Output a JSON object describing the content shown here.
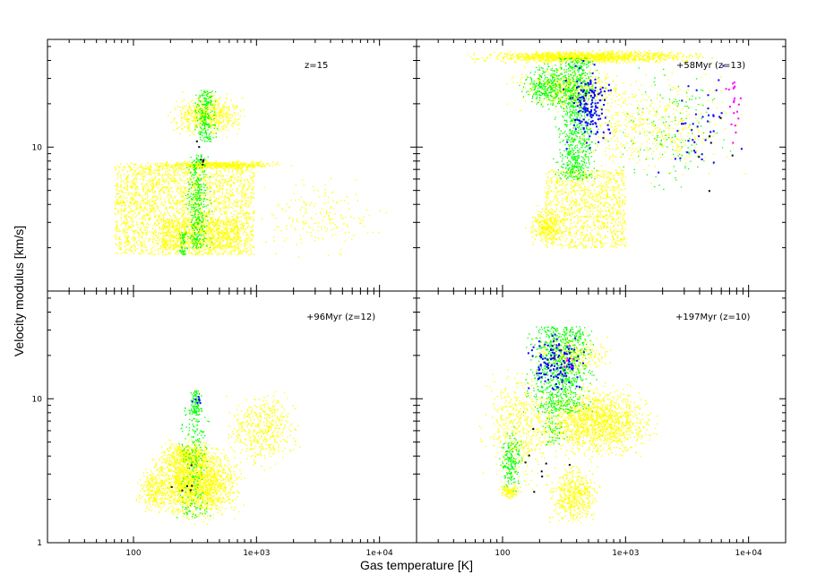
{
  "chart_data": {
    "type": "scatter",
    "xlabel": "Gas temperature [K]",
    "ylabel": "Velocity modulus [km/s]",
    "x_scale": "log",
    "y_scale": "log",
    "xlim": [
      20,
      20000
    ],
    "x_ticks": [
      "100",
      "1e+03",
      "1e+04"
    ],
    "x_tick_values": [
      100,
      1000,
      10000
    ],
    "colors": {
      "yellow": "#ffff00",
      "green": "#00ff00",
      "blue": "#0000ff",
      "magenta": "#ff00ff",
      "black": "#000000",
      "frame": "#000000"
    },
    "panels": [
      {
        "label": "z=15",
        "ylim": [
          1,
          56
        ],
        "y_ticks": [
          "10"
        ],
        "y_tick_values": [
          10
        ],
        "show_y_tick_labels": true,
        "show_x_tick_labels": false,
        "regions": [
          {
            "color": "yellow",
            "count": 2600,
            "shape": "box",
            "t": [
              70,
              950
            ],
            "v": [
              1.8,
              7.8
            ]
          },
          {
            "color": "yellow",
            "count": 700,
            "shape": "box",
            "t": [
              170,
              700
            ],
            "v": [
              2.0,
              3.2
            ]
          },
          {
            "color": "yellow",
            "count": 500,
            "shape": "blob",
            "t": [
              110,
              2000
            ],
            "v": [
              7.0,
              8.2
            ]
          },
          {
            "color": "yellow",
            "count": 600,
            "shape": "blob",
            "t": [
              180,
              900
            ],
            "v": [
              11,
              26
            ]
          },
          {
            "color": "yellow",
            "count": 180,
            "shape": "blob",
            "t": [
              600,
              14000
            ],
            "v": [
              1.5,
              7
            ]
          },
          {
            "color": "green",
            "count": 400,
            "shape": "band",
            "t": [
              230,
              480
            ],
            "v": [
              2.0,
              9.0
            ]
          },
          {
            "color": "green",
            "count": 240,
            "shape": "band",
            "t": [
              280,
              520
            ],
            "v": [
              11,
              25
            ]
          },
          {
            "color": "green",
            "count": 60,
            "shape": "band",
            "t": [
              220,
              290
            ],
            "v": [
              1.8,
              2.6
            ]
          },
          {
            "color": "black",
            "count": 6,
            "shape": "blob",
            "t": [
              280,
              420
            ],
            "v": [
              6,
              12
            ]
          }
        ]
      },
      {
        "label": "+58Myr (z=13)",
        "ylim": [
          1,
          56
        ],
        "y_ticks": [],
        "y_tick_values": [
          10
        ],
        "show_y_tick_labels": false,
        "show_x_tick_labels": false,
        "regions": [
          {
            "color": "yellow",
            "count": 1400,
            "shape": "blob",
            "t": [
              40,
              6000
            ],
            "v": [
              38,
              48
            ]
          },
          {
            "color": "yellow",
            "count": 500,
            "shape": "blob",
            "t": [
              100,
              1200
            ],
            "v": [
              17,
              40
            ]
          },
          {
            "color": "yellow",
            "count": 1100,
            "shape": "box",
            "t": [
              220,
              1000
            ],
            "v": [
              2.0,
              7
            ]
          },
          {
            "color": "yellow",
            "count": 300,
            "shape": "blob",
            "t": [
              150,
              340
            ],
            "v": [
              2.0,
              4.0
            ]
          },
          {
            "color": "yellow",
            "count": 500,
            "shape": "blob",
            "t": [
              200,
              12000
            ],
            "v": [
              5,
              40
            ]
          },
          {
            "color": "green",
            "count": 900,
            "shape": "band",
            "t": [
              220,
              700
            ],
            "v": [
              6,
              42
            ]
          },
          {
            "color": "green",
            "count": 350,
            "shape": "blob",
            "t": [
              130,
              420
            ],
            "v": [
              17,
              42
            ]
          },
          {
            "color": "green",
            "count": 150,
            "shape": "blob",
            "t": [
              600,
              9000
            ],
            "v": [
              4,
              45
            ]
          },
          {
            "color": "blue",
            "count": 160,
            "shape": "blob",
            "t": [
              280,
              900
            ],
            "v": [
              8,
              45
            ]
          },
          {
            "color": "blue",
            "count": 40,
            "shape": "blob",
            "t": [
              1500,
              9000
            ],
            "v": [
              4,
              48
            ]
          },
          {
            "color": "magenta",
            "count": 20,
            "shape": "blob",
            "t": [
              6000,
              9500
            ],
            "v": [
              8,
              40
            ]
          },
          {
            "color": "black",
            "count": 6,
            "shape": "blob",
            "t": [
              3000,
              9000
            ],
            "v": [
              4,
              30
            ]
          }
        ]
      },
      {
        "label": "+96Myr (z=12)",
        "ylim": [
          1,
          56
        ],
        "y_ticks": [
          "1",
          "10"
        ],
        "y_tick_values": [
          1,
          10
        ],
        "show_y_tick_labels": true,
        "show_x_tick_labels": true,
        "regions": [
          {
            "color": "yellow",
            "count": 1900,
            "shape": "blob",
            "t": [
              110,
              900
            ],
            "v": [
              1.3,
              5.0
            ]
          },
          {
            "color": "yellow",
            "count": 500,
            "shape": "blob",
            "t": [
              140,
              560
            ],
            "v": [
              3.0,
              5.5
            ]
          },
          {
            "color": "yellow",
            "count": 450,
            "shape": "blob",
            "t": [
              500,
              2500
            ],
            "v": [
              3.0,
              13
            ]
          },
          {
            "color": "yellow",
            "count": 200,
            "shape": "blob",
            "t": [
              100,
              200
            ],
            "v": [
              1.5,
              3.5
            ]
          },
          {
            "color": "green",
            "count": 260,
            "shape": "band",
            "t": [
              200,
              480
            ],
            "v": [
              1.5,
              9
            ]
          },
          {
            "color": "green",
            "count": 90,
            "shape": "band",
            "t": [
              260,
              380
            ],
            "v": [
              8,
              11.5
            ]
          },
          {
            "color": "blue",
            "count": 8,
            "shape": "blob",
            "t": [
              280,
              360
            ],
            "v": [
              9,
              11
            ]
          },
          {
            "color": "black",
            "count": 6,
            "shape": "blob",
            "t": [
              180,
              400
            ],
            "v": [
              1.8,
              4
            ]
          }
        ]
      },
      {
        "label": "+197Myr (z=10)",
        "ylim": [
          1,
          56
        ],
        "y_ticks": [],
        "y_tick_values": [
          1,
          10
        ],
        "show_y_tick_labels": false,
        "show_x_tick_labels": true,
        "regions": [
          {
            "color": "yellow",
            "count": 1500,
            "shape": "blob",
            "t": [
              140,
              2200
            ],
            "v": [
              3.5,
              14
            ]
          },
          {
            "color": "yellow",
            "count": 500,
            "shape": "blob",
            "t": [
              60,
              300
            ],
            "v": [
              2.0,
              20
            ]
          },
          {
            "color": "yellow",
            "count": 500,
            "shape": "blob",
            "t": [
              200,
              700
            ],
            "v": [
              1.2,
              4
            ]
          },
          {
            "color": "yellow",
            "count": 300,
            "shape": "blob",
            "t": [
              150,
              900
            ],
            "v": [
              14,
              30
            ]
          },
          {
            "color": "yellow",
            "count": 120,
            "shape": "blob",
            "t": [
              90,
              140
            ],
            "v": [
              2.0,
              2.6
            ]
          },
          {
            "color": "green",
            "count": 900,
            "shape": "band",
            "t": [
              110,
              800
            ],
            "v": [
              8,
              32
            ]
          },
          {
            "color": "green",
            "count": 200,
            "shape": "blob",
            "t": [
              90,
              150
            ],
            "v": [
              2,
              7
            ]
          },
          {
            "color": "green",
            "count": 60,
            "shape": "blob",
            "t": [
              180,
              350
            ],
            "v": [
              4,
              9
            ]
          },
          {
            "color": "blue",
            "count": 140,
            "shape": "blob",
            "t": [
              140,
              520
            ],
            "v": [
              10,
              32
            ]
          },
          {
            "color": "magenta",
            "count": 6,
            "shape": "blob",
            "t": [
              250,
              450
            ],
            "v": [
              14,
              26
            ]
          },
          {
            "color": "black",
            "count": 8,
            "shape": "blob",
            "t": [
              70,
              600
            ],
            "v": [
              1.2,
              16
            ]
          }
        ]
      }
    ]
  }
}
